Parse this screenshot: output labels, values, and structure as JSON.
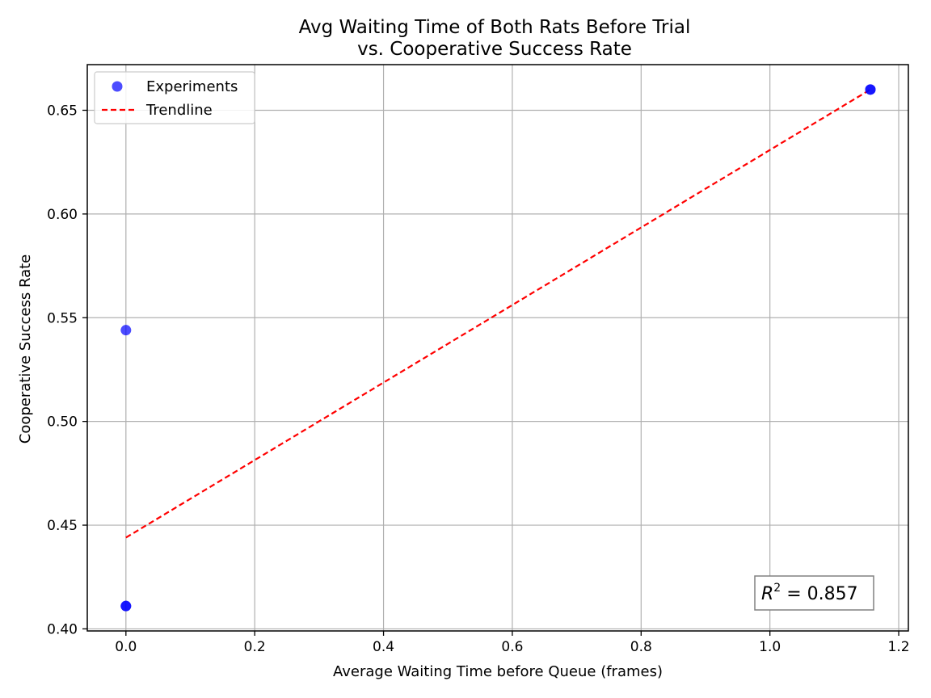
{
  "chart_data": {
    "type": "scatter",
    "title_lines": [
      "Avg Waiting Time of Both Rats Before Trial",
      "vs. Cooperative Success Rate"
    ],
    "xlabel": "Average Waiting Time before Queue (frames)",
    "ylabel": "Cooperative Success Rate",
    "xlim": [
      -0.06,
      1.215
    ],
    "ylim": [
      0.399,
      0.672
    ],
    "xticks": [
      0.0,
      0.2,
      0.4,
      0.6,
      0.8,
      1.0,
      1.2
    ],
    "xtick_labels": [
      "0.0",
      "0.2",
      "0.4",
      "0.6",
      "0.8",
      "1.0",
      "1.2"
    ],
    "yticks": [
      0.4,
      0.45,
      0.5,
      0.55,
      0.6,
      0.65
    ],
    "ytick_labels": [
      "0.40",
      "0.45",
      "0.50",
      "0.55",
      "0.60",
      "0.65"
    ],
    "grid": true,
    "legend_position": "top-left",
    "series": [
      {
        "name": "Experiments",
        "kind": "scatter",
        "color": "#0000ff",
        "opacity": 0.7,
        "points": [
          {
            "x": 0.0,
            "y": 0.544
          },
          {
            "x": 0.0,
            "y": 0.411
          },
          {
            "x": 0.0,
            "y": 0.411
          },
          {
            "x": 1.156,
            "y": 0.66
          },
          {
            "x": 1.156,
            "y": 0.66
          }
        ]
      },
      {
        "name": "Trendline",
        "kind": "line",
        "color": "#ff0000",
        "dash": "dashed",
        "points": [
          {
            "x": 0.0,
            "y": 0.444
          },
          {
            "x": 1.156,
            "y": 0.66
          }
        ]
      }
    ],
    "annotation": {
      "label": "R",
      "superscript": "2",
      "value_text": " = 0.857",
      "position": "bottom-right"
    }
  }
}
